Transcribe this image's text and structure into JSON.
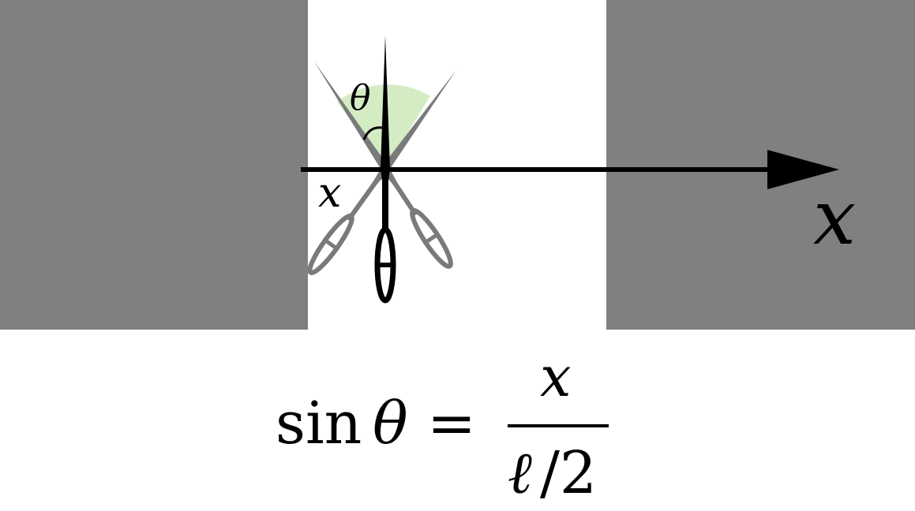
{
  "labels": {
    "theta": "θ",
    "x_small": "x",
    "x_axis": "x"
  },
  "formula": {
    "lhs_func": "sin",
    "lhs_var": "θ",
    "equals": "=",
    "numerator": "x",
    "denominator_ell": "ℓ",
    "denominator_rest": "/2"
  },
  "colors": {
    "strip_gray": "#808080",
    "needle_gray": "#7a7a7a",
    "needle_black": "#000000",
    "angle_fill": "#d4ecc4",
    "background": "#ffffff"
  }
}
